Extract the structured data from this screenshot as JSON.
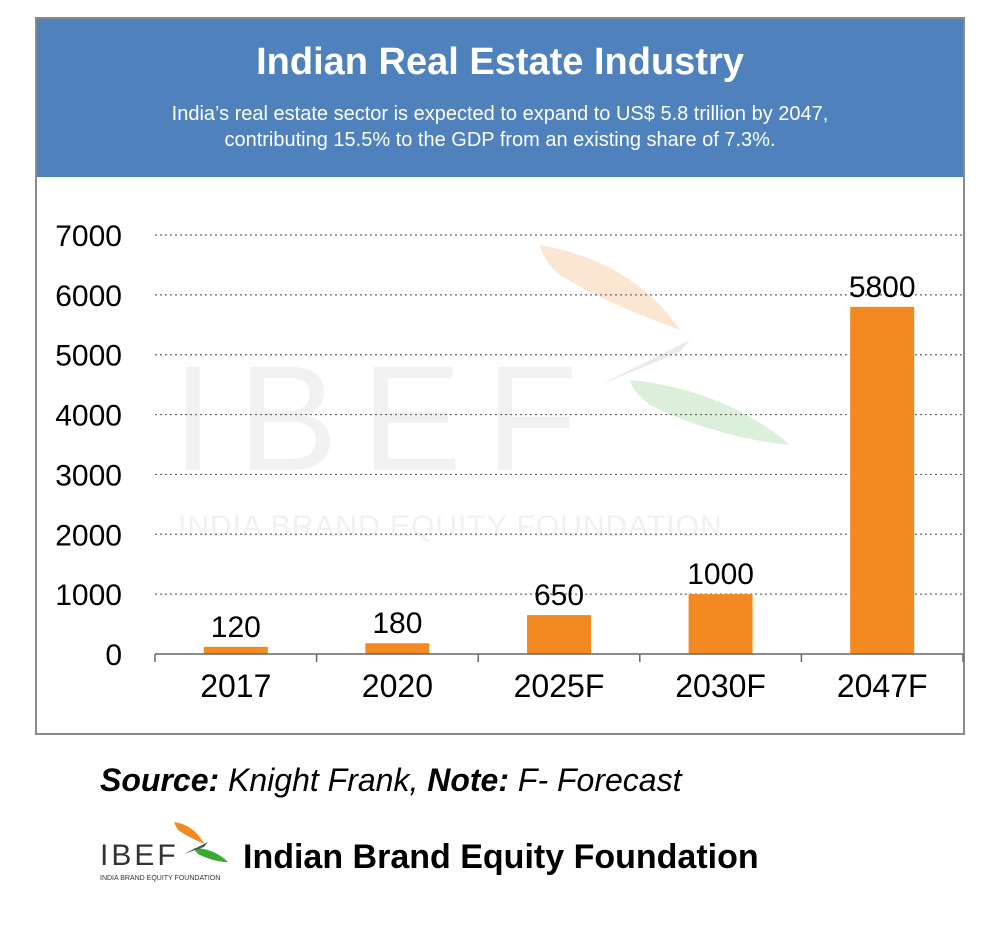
{
  "header": {
    "title": "Indian Real Estate Industry",
    "subtitle_line1": "India’s real estate sector is expected to expand to US$ 5.8 trillion by 2047,",
    "subtitle_line2": "contributing 15.5% to the GDP from an existing share of 7.3%."
  },
  "watermark": {
    "logo_text": "IBEF",
    "tagline": "INDIA BRAND EQUITY FOUNDATION"
  },
  "chart_data": {
    "type": "bar",
    "categories": [
      "2017",
      "2020",
      "2025F",
      "2030F",
      "2047F"
    ],
    "values": [
      120,
      180,
      650,
      1000,
      5800
    ],
    "data_labels": [
      "120",
      "180",
      "650",
      "1000",
      "5800"
    ],
    "yticks": [
      "0",
      "1000",
      "2000",
      "3000",
      "4000",
      "5000",
      "6000",
      "7000"
    ],
    "ylim": [
      0,
      7000
    ],
    "grid": true,
    "bar_color": "#f28a21"
  },
  "source": {
    "source_label": "Source:",
    "source_value": " Knight Frank, ",
    "note_label": "Note:",
    "note_value": " F- Forecast"
  },
  "footer": {
    "logo_text": "IBEF",
    "logo_tagline": "INDIA BRAND EQUITY FOUNDATION",
    "org_name": "Indian Brand Equity Foundation"
  },
  "colors": {
    "header_bg": "#4f81bd",
    "bar": "#f28a21",
    "saffron": "#f28a21",
    "green": "#3aaa35"
  }
}
